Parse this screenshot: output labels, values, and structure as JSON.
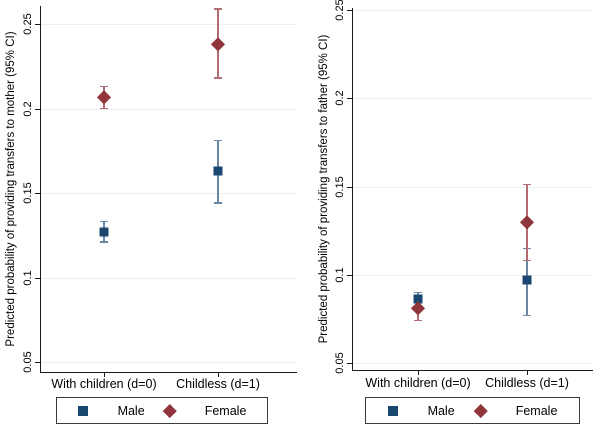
{
  "figure": {
    "background": "#ffffff",
    "axis_color": "#1a1a1a",
    "grid_color": "#e8f1f0",
    "accent_navy": "#1a476f",
    "accent_maroon": "#90353b"
  },
  "legend": {
    "items": [
      {
        "label": "Male",
        "marker": "square-icon",
        "color": "#1a476f"
      },
      {
        "label": "Female",
        "marker": "diamond-icon",
        "color": "#90353b"
      }
    ]
  },
  "chart_data": [
    {
      "type": "scatter",
      "subtype": "point-estimates-with-error-bars",
      "error_bars": "95% CI",
      "title": "",
      "xlabel": "",
      "ylabel": "Predicted probability of providing transfers to mother (95% CI)",
      "categories": [
        "With children (d=0)",
        "Childless (d=1)"
      ],
      "yticks": [
        0.05,
        0.1,
        0.15,
        0.2,
        0.25
      ],
      "ytick_labels": [
        "0.05",
        "0.1",
        "0.15",
        "0.2",
        "0.25"
      ],
      "ylim": [
        0.044,
        0.261
      ],
      "grid": true,
      "legend_position": "bottom",
      "series": [
        {
          "name": "Male",
          "marker": "square",
          "color": "#1a476f",
          "ci_color": "#6787a5",
          "values": [
            0.127,
            0.163
          ],
          "ci_low": [
            0.121,
            0.144
          ],
          "ci_high": [
            0.133,
            0.181
          ]
        },
        {
          "name": "Female",
          "marker": "diamond",
          "color": "#90353b",
          "ci_color": "#b26d72",
          "values": [
            0.207,
            0.238
          ],
          "ci_low": [
            0.2,
            0.218
          ],
          "ci_high": [
            0.213,
            0.259
          ]
        }
      ]
    },
    {
      "type": "scatter",
      "subtype": "point-estimates-with-error-bars",
      "error_bars": "95% CI",
      "title": "",
      "xlabel": "",
      "ylabel": "Predicted probability of providing transfers to father (95% CI)",
      "categories": [
        "With children (d=0)",
        "Childless (d=1)"
      ],
      "yticks": [
        0.05,
        0.1,
        0.15,
        0.2,
        0.25
      ],
      "ytick_labels": [
        "0.05",
        "0.1",
        "0.15",
        "0.2",
        "0.25"
      ],
      "ylim": [
        0.046,
        0.251
      ],
      "grid": true,
      "legend_position": "bottom",
      "series": [
        {
          "name": "Male",
          "marker": "square",
          "color": "#1a476f",
          "ci_color": "#6787a5",
          "values": [
            0.086,
            0.097
          ],
          "ci_low": [
            0.082,
            0.077
          ],
          "ci_high": [
            0.09,
            0.115
          ]
        },
        {
          "name": "Female",
          "marker": "diamond",
          "color": "#90353b",
          "ci_color": "#b26d72",
          "values": [
            0.081,
            0.13
          ],
          "ci_low": [
            0.074,
            0.108
          ],
          "ci_high": [
            0.088,
            0.151
          ]
        }
      ]
    }
  ]
}
